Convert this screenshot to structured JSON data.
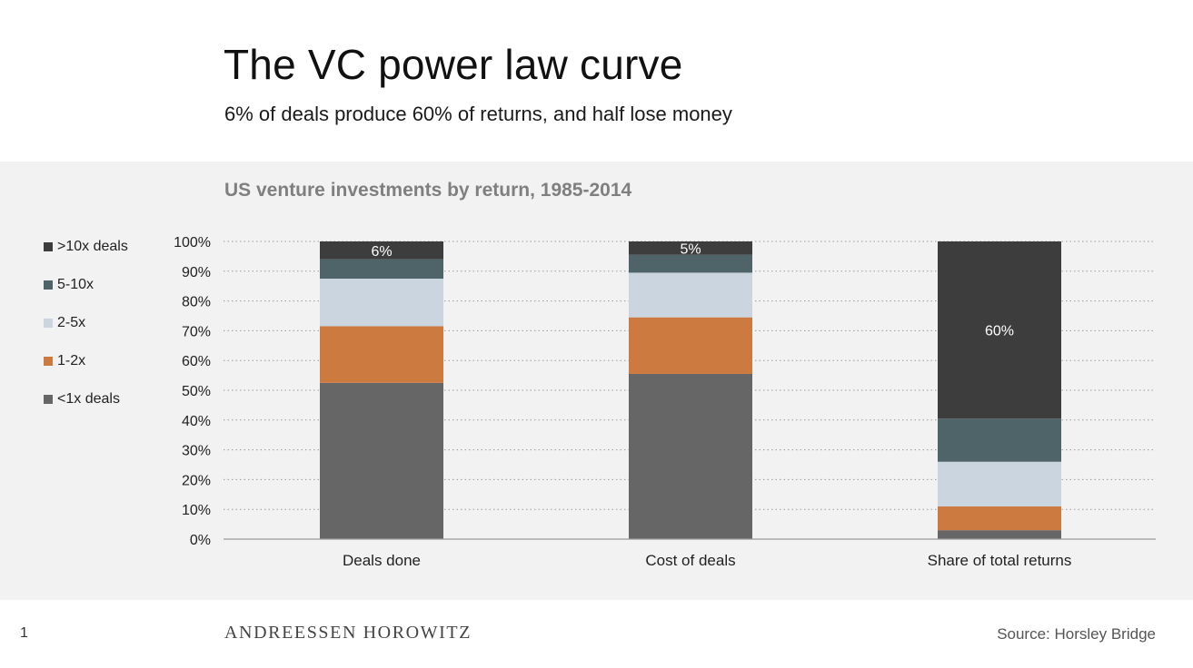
{
  "slide": {
    "title": "The VC power law curve",
    "subtitle": "6% of deals produce 60% of returns, and half lose money",
    "page_number": "1",
    "brand": "ANDREESSEN HOROWITZ",
    "source": "Source: Horsley Bridge"
  },
  "colors": {
    "panel_background": "#f2f2f2",
    "gt10x": "#3d3d3d",
    "x5_10": "#4e6469",
    "x2_5": "#cbd5e0",
    "x1_2": "#cc7a40",
    "lt1x": "#666666"
  },
  "chart_data": {
    "type": "bar",
    "stacked": true,
    "title": "US venture investments by return, 1985-2014",
    "xlabel": "",
    "ylabel": "",
    "ylim": [
      0,
      100
    ],
    "y_ticks": [
      "0%",
      "10%",
      "20%",
      "30%",
      "40%",
      "50%",
      "60%",
      "70%",
      "80%",
      "90%",
      "100%"
    ],
    "grid": "horizontal dotted",
    "legend_position": "left",
    "categories": [
      "Deals done",
      "Cost of deals",
      "Share of total returns"
    ],
    "series": [
      {
        "name": "<1x deals",
        "color": "#666666",
        "values": [
          52.5,
          55.5,
          3
        ]
      },
      {
        "name": "1-2x",
        "color": "#cc7a40",
        "values": [
          19,
          19,
          8
        ]
      },
      {
        "name": "2-5x",
        "color": "#cbd5e0",
        "values": [
          16,
          15,
          15
        ]
      },
      {
        "name": "5-10x",
        "color": "#4e6469",
        "values": [
          6.5,
          6,
          14.5
        ]
      },
      {
        "name": ">10x deals",
        "color": "#3d3d3d",
        "values": [
          6,
          4.5,
          59.5
        ]
      }
    ],
    "data_labels": [
      {
        "category": "Deals done",
        "series": ">10x deals",
        "text": "6%"
      },
      {
        "category": "Cost of deals",
        "series": ">10x deals",
        "text": "5%"
      },
      {
        "category": "Share of total returns",
        "series": ">10x deals",
        "text": "60%"
      }
    ]
  }
}
